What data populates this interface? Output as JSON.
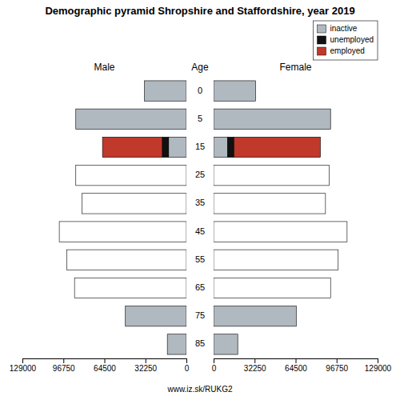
{
  "chart_data": {
    "type": "bar",
    "orientation": "horizontal",
    "stacked": true,
    "title": "Demographic pyramid Shropshire and Staffordshire, year 2019",
    "ylabel": "Age",
    "categories": [
      "85",
      "75",
      "65",
      "55",
      "45",
      "35",
      "25",
      "15",
      "5",
      "0"
    ],
    "legend": "upper right",
    "grid": false,
    "annotations": [
      "www.iz.sk/RUKG2"
    ],
    "panels": [
      {
        "title": "Male",
        "xlim": [
          129000,
          0
        ],
        "xticks": [
          129000,
          96750,
          64500,
          32250,
          0
        ],
        "series": [
          {
            "name": "inactive",
            "color": "#b0b8c0",
            "values": [
              15000,
              48000,
              0,
              0,
              0,
              0,
              0,
              14000,
              87000,
              33000
            ]
          },
          {
            "name": "unemployed",
            "color": "#111111",
            "values": [
              0,
              0,
              0,
              0,
              0,
              0,
              0,
              5000,
              0,
              0
            ]
          },
          {
            "name": "employed",
            "color": "#c0392b",
            "colors": [
              "#c0392b",
              "#c0392b",
              "#ffffff",
              "#ffffff",
              "#ffffff",
              "#ffffff",
              "#ffffff",
              "#c0392b",
              "#c0392b",
              "#c0392b"
            ],
            "values": [
              0,
              0,
              88000,
              94000,
              100000,
              82000,
              87000,
              47000,
              0,
              0
            ]
          }
        ]
      },
      {
        "title": "Female",
        "xlim": [
          0,
          129000
        ],
        "xticks": [
          0,
          32250,
          64500,
          96750,
          129000
        ],
        "series": [
          {
            "name": "inactive",
            "color": "#b0b8c0",
            "values": [
              19000,
              65000,
              0,
              0,
              0,
              0,
              0,
              11000,
              92000,
              33000
            ]
          },
          {
            "name": "unemployed",
            "color": "#111111",
            "values": [
              0,
              0,
              0,
              0,
              0,
              0,
              0,
              5000,
              0,
              0
            ]
          },
          {
            "name": "employed",
            "color": "#c0392b",
            "colors": [
              "#c0392b",
              "#c0392b",
              "#ffffff",
              "#ffffff",
              "#ffffff",
              "#ffffff",
              "#ffffff",
              "#c0392b",
              "#c0392b",
              "#c0392b"
            ],
            "values": [
              0,
              0,
              92000,
              98000,
              105000,
              88000,
              91000,
              68000,
              0,
              0
            ]
          }
        ]
      }
    ]
  }
}
